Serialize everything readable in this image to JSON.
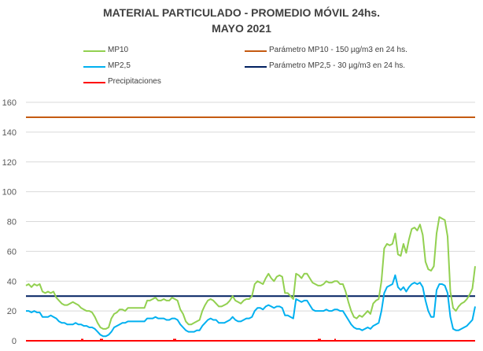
{
  "chart_data": {
    "type": "line",
    "title": "MATERIAL PARTICULADO - PROMEDIO MÓVIL 24hs.",
    "subtitle": "MAYO 2021",
    "xlabel": "",
    "ylabel": "",
    "ylim": [
      0,
      160
    ],
    "yticks": [
      "0",
      "20",
      "40",
      "60",
      "80",
      "100",
      "120",
      "140",
      "160"
    ],
    "grid": true,
    "legend_position": "top",
    "series": [
      {
        "name": "MP10",
        "color": "#92d050",
        "values": [
          37,
          38,
          36,
          38,
          37,
          38,
          33,
          32,
          33,
          32,
          33,
          29,
          27,
          25,
          24,
          24,
          25,
          26,
          25,
          24,
          22,
          21,
          20,
          20,
          19,
          16,
          12,
          9,
          8,
          8,
          9,
          15,
          18,
          19,
          21,
          21,
          20,
          22,
          22,
          22,
          22,
          22,
          22,
          22,
          27,
          27,
          28,
          29,
          27,
          27,
          28,
          27,
          27,
          29,
          28,
          27,
          21,
          18,
          13,
          11,
          11,
          12,
          13,
          14,
          20,
          24,
          27,
          28,
          27,
          25,
          23,
          23,
          24,
          25,
          27,
          30,
          27,
          26,
          25,
          27,
          28,
          28,
          30,
          38,
          40,
          39,
          38,
          42,
          45,
          42,
          40,
          43,
          44,
          43,
          32,
          32,
          30,
          28,
          45,
          44,
          42,
          45,
          45,
          42,
          39,
          38,
          37,
          37,
          38,
          40,
          39,
          39,
          40,
          40,
          38,
          38,
          33,
          26,
          20,
          16,
          15,
          17,
          16,
          18,
          20,
          18,
          25,
          27,
          28,
          40,
          62,
          65,
          64,
          65,
          72,
          58,
          57,
          65,
          59,
          68,
          75,
          76,
          74,
          78,
          71,
          53,
          48,
          47,
          50,
          72,
          83,
          82,
          81,
          70,
          33,
          22,
          20,
          23,
          25,
          26,
          28,
          31,
          35,
          50
        ]
      },
      {
        "name": "MP2,5",
        "color": "#00b0f0",
        "values": [
          20,
          20,
          19,
          20,
          19,
          19,
          16,
          16,
          16,
          17,
          16,
          15,
          13,
          12,
          12,
          11,
          11,
          11,
          12,
          11,
          11,
          10,
          10,
          9,
          9,
          8,
          6,
          4,
          3,
          3,
          4,
          6,
          9,
          10,
          11,
          12,
          12,
          13,
          13,
          13,
          13,
          13,
          13,
          13,
          15,
          15,
          15,
          16,
          15,
          15,
          15,
          14,
          14,
          15,
          15,
          14,
          11,
          9,
          7,
          6,
          6,
          6,
          7,
          7,
          10,
          12,
          14,
          15,
          14,
          14,
          12,
          12,
          12,
          13,
          14,
          16,
          14,
          13,
          13,
          14,
          15,
          15,
          16,
          20,
          22,
          22,
          21,
          23,
          24,
          23,
          22,
          23,
          23,
          22,
          17,
          17,
          16,
          15,
          28,
          27,
          26,
          27,
          27,
          24,
          21,
          20,
          20,
          20,
          20,
          21,
          20,
          20,
          21,
          21,
          20,
          20,
          17,
          14,
          11,
          9,
          8,
          8,
          7,
          8,
          9,
          8,
          10,
          11,
          12,
          20,
          32,
          36,
          37,
          38,
          44,
          36,
          34,
          36,
          33,
          36,
          38,
          39,
          38,
          39,
          36,
          27,
          20,
          16,
          16,
          34,
          38,
          38,
          37,
          32,
          16,
          8,
          7,
          7,
          8,
          9,
          10,
          12,
          14,
          23
        ]
      },
      {
        "name": "Precipitaciones",
        "color": "#ff0000",
        "values": [
          0,
          0,
          0,
          0,
          0,
          0,
          0,
          0,
          0,
          0,
          0,
          0,
          0,
          0,
          0,
          0,
          0,
          0,
          0,
          0,
          0,
          0,
          0,
          0,
          0,
          0,
          0,
          0,
          0,
          0,
          0,
          0,
          0,
          0,
          0,
          0,
          0,
          0,
          0,
          0,
          0,
          0,
          0,
          0,
          0,
          0,
          0,
          0,
          0,
          0,
          0,
          0,
          0,
          0,
          0,
          0,
          0,
          0,
          0,
          0,
          0,
          0,
          0,
          0,
          0,
          0,
          0,
          0,
          0,
          0,
          0,
          0,
          0,
          0,
          0,
          0,
          0,
          0,
          0,
          0,
          0,
          0,
          0,
          0,
          0,
          0,
          0,
          0,
          0,
          0,
          0,
          0,
          0,
          0,
          0,
          0,
          0,
          0,
          0,
          0,
          0,
          0,
          0,
          0,
          0,
          0,
          0,
          0,
          0,
          0,
          0,
          0,
          0,
          0,
          0,
          0,
          0,
          0,
          0,
          0,
          0,
          0,
          0,
          0,
          0,
          0,
          0,
          0,
          0,
          0,
          0,
          0,
          0,
          0,
          0,
          0,
          0,
          0,
          0,
          0,
          0,
          0,
          0,
          0,
          0,
          0,
          0,
          0,
          0,
          0,
          0,
          0,
          0,
          0,
          0,
          0,
          0,
          0,
          0,
          0,
          0,
          0,
          0,
          0,
          0,
          0
        ]
      },
      {
        "name": "Parámetro MP10 - 150 µg/m3 en 24 hs.",
        "color": "#c55a11",
        "constant": 150
      },
      {
        "name": "Parámetro MP2,5 - 30 µg/m3 en 24 hs.",
        "color": "#002060",
        "constant": 30
      }
    ]
  }
}
